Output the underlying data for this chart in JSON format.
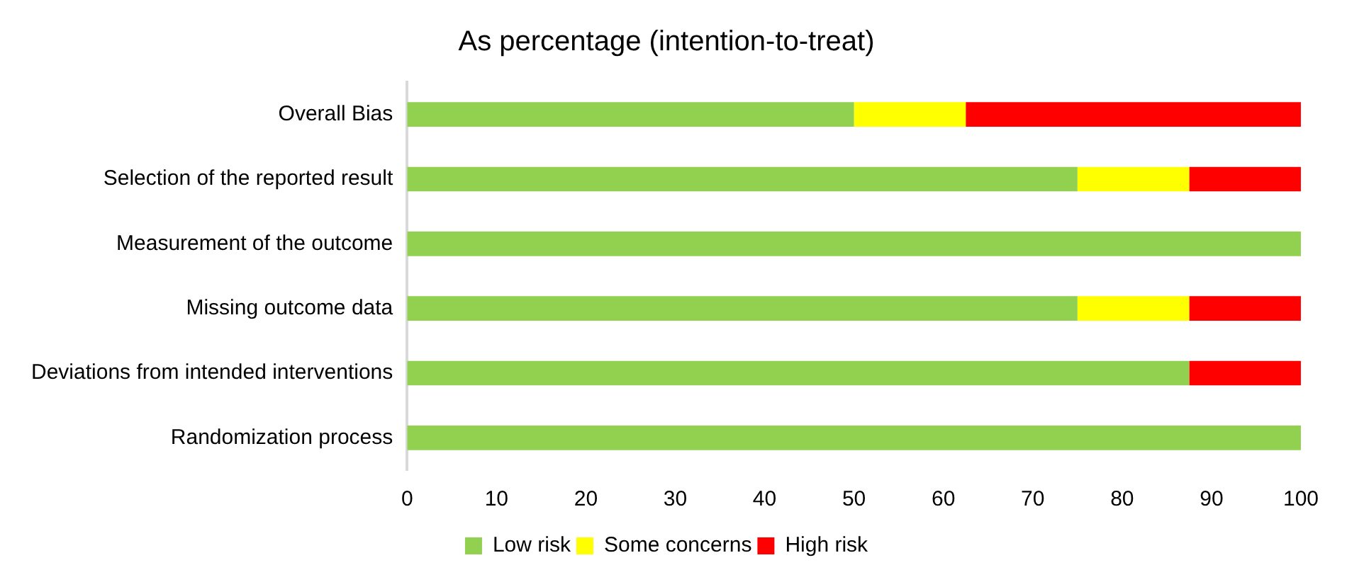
{
  "chart_data": {
    "type": "bar",
    "orientation": "horizontal",
    "stacked": true,
    "title": "As percentage (intention-to-treat)",
    "categories": [
      "Overall Bias",
      "Selection of the reported result",
      "Measurement of the outcome",
      "Missing outcome data",
      "Deviations from intended interventions",
      "Randomization process"
    ],
    "series": [
      {
        "name": "Low risk",
        "color": "#92d050",
        "values": [
          50,
          75,
          100,
          75,
          87.5,
          100
        ]
      },
      {
        "name": "Some concerns",
        "color": "#ffff00",
        "values": [
          12.5,
          12.5,
          0,
          12.5,
          0,
          0
        ]
      },
      {
        "name": "High risk",
        "color": "#ff0000",
        "values": [
          37.5,
          12.5,
          0,
          12.5,
          12.5,
          0
        ]
      }
    ],
    "xlim": [
      0,
      100
    ],
    "xticks": [
      0,
      10,
      20,
      30,
      40,
      50,
      60,
      70,
      80,
      90,
      100
    ],
    "grid": false,
    "legend": "bottom"
  }
}
